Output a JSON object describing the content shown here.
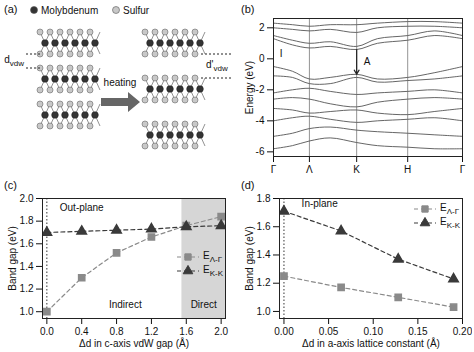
{
  "chart_data": [
    {
      "type": "diagram",
      "panel_label": "(a)",
      "atoms": [
        {
          "label": "Molybdenum",
          "color": "#333333"
        },
        {
          "label": "Sulfur",
          "color": "#c8c8c8"
        }
      ],
      "gap_labels": [
        "dvdw",
        "d'vdw"
      ],
      "arrow_label": "heating"
    },
    {
      "type": "band",
      "panel_label": "(b)",
      "ylabel": "Energy (eV)",
      "x": [
        0,
        0.1,
        0.19,
        0.3,
        0.44,
        0.55,
        0.71,
        0.85,
        1.0
      ],
      "xlim": [
        0,
        1
      ],
      "xticks": [
        {
          "value": 0,
          "label": "Γ"
        },
        {
          "value": 0.19,
          "label": "Λ"
        },
        {
          "value": 0.44,
          "label": "K"
        },
        {
          "value": 0.71,
          "label": "H"
        },
        {
          "value": 1.0,
          "label": "Γ"
        }
      ],
      "ylim": [
        -6.3,
        2.6
      ],
      "yticks": [
        -6,
        -4,
        -2,
        0,
        2
      ],
      "grid": "x",
      "series": [
        {
          "color": "#555555",
          "line_style": "solid",
          "values": [
            1.3,
            0.9,
            0.7,
            0.8,
            0.6,
            1.0,
            1.2,
            1.5,
            1.3
          ]
        },
        {
          "color": "#555555",
          "line_style": "solid",
          "values": [
            1.5,
            1.2,
            1.0,
            1.1,
            0.8,
            1.3,
            1.5,
            1.8,
            1.5
          ]
        },
        {
          "color": "#555555",
          "line_style": "solid",
          "values": [
            2.0,
            1.9,
            1.8,
            1.9,
            1.7,
            2.0,
            2.1,
            2.1,
            2.0
          ]
        },
        {
          "color": "#555555",
          "line_style": "solid",
          "values": [
            2.3,
            2.2,
            2.1,
            2.2,
            2.2,
            2.3,
            2.4,
            2.4,
            2.3
          ]
        },
        {
          "color": "#555555",
          "line_style": "solid",
          "values": [
            -0.5,
            -0.8,
            -1.3,
            -1.2,
            -1.0,
            -1.3,
            -1.2,
            -0.9,
            -0.5
          ]
        },
        {
          "color": "#555555",
          "line_style": "solid",
          "values": [
            -1.1,
            -1.2,
            -1.6,
            -1.6,
            -1.2,
            -1.5,
            -1.4,
            -1.3,
            -1.1
          ]
        },
        {
          "color": "#555555",
          "line_style": "solid",
          "values": [
            -2.2,
            -2.0,
            -1.9,
            -2.1,
            -2.3,
            -2.2,
            -2.1,
            -2.0,
            -2.2
          ]
        },
        {
          "color": "#555555",
          "line_style": "solid",
          "values": [
            -2.6,
            -2.5,
            -2.6,
            -2.9,
            -3.1,
            -2.8,
            -2.6,
            -2.5,
            -2.6
          ]
        },
        {
          "color": "#555555",
          "line_style": "solid",
          "values": [
            -3.2,
            -3.3,
            -3.5,
            -3.4,
            -3.3,
            -3.5,
            -3.6,
            -3.4,
            -3.2
          ]
        },
        {
          "color": "#555555",
          "line_style": "solid",
          "values": [
            -4.0,
            -3.8,
            -3.7,
            -3.9,
            -4.1,
            -4.0,
            -3.9,
            -3.8,
            -4.0
          ]
        },
        {
          "color": "#555555",
          "line_style": "solid",
          "values": [
            -5.0,
            -4.8,
            -4.5,
            -4.4,
            -4.6,
            -4.7,
            -4.8,
            -4.9,
            -5.0
          ]
        },
        {
          "color": "#555555",
          "line_style": "solid",
          "values": [
            -5.8,
            -5.6,
            -5.3,
            -5.1,
            -5.4,
            -5.6,
            -5.7,
            -5.8,
            -5.8
          ]
        }
      ],
      "annotations": [
        {
          "text": "I",
          "x": 0.04,
          "y": 0.3
        }
      ],
      "arrows": [
        {
          "text": "A",
          "x": 0.44,
          "from": 0.6,
          "to": -1.0
        }
      ]
    },
    {
      "type": "line",
      "panel_label": "(c)",
      "xlabel": "Δd in c-axis vdW gap (Å)",
      "ylabel": "Band gap (eV)",
      "x": [
        0,
        0.4,
        0.8,
        1.2,
        1.6,
        2.0
      ],
      "xlim": [
        -0.05,
        2.05
      ],
      "xticks": [
        {
          "value": 0,
          "label": "0.0"
        },
        {
          "value": 0.4,
          "label": "0.4"
        },
        {
          "value": 0.8,
          "label": "0.8"
        },
        {
          "value": 1.2,
          "label": "1.2"
        },
        {
          "value": 1.6,
          "label": "1.6"
        },
        {
          "value": 2,
          "label": "2.0"
        }
      ],
      "ylim": [
        0.94,
        2.0
      ],
      "yticks": [
        {
          "value": 1,
          "label": "1.0"
        },
        {
          "value": 1.2,
          "label": "1.2"
        },
        {
          "value": 1.4,
          "label": "1.4"
        },
        {
          "value": 1.6,
          "label": "1.6"
        },
        {
          "value": 1.8,
          "label": "1.8"
        },
        {
          "value": 2,
          "label": "2.0"
        }
      ],
      "legend": "right",
      "series": [
        {
          "name": "EΛ-Γ",
          "color": "#8a8a8a",
          "marker": "square",
          "line_style": "dashed",
          "values": [
            1.0,
            1.3,
            1.52,
            1.66,
            1.76,
            1.84
          ]
        },
        {
          "name": "EK-K",
          "color": "#3a3a3a",
          "marker": "triangle",
          "line_style": "dashed",
          "values": [
            1.7,
            1.71,
            1.72,
            1.73,
            1.75,
            1.76
          ]
        }
      ],
      "shaded_regions": [
        {
          "from": 1.55,
          "to": 2.05,
          "color": "#d6d6d6"
        }
      ],
      "reference_lines": [
        {
          "x": 0,
          "line_style": "dotted"
        }
      ],
      "annotations": [
        {
          "text": "Out-plane",
          "x": 0.4,
          "y": 1.92
        },
        {
          "text": "Indirect",
          "x": 0.9,
          "y": 1.06
        },
        {
          "text": "Direct",
          "x": 1.8,
          "y": 1.06
        }
      ]
    },
    {
      "type": "line",
      "panel_label": "(d)",
      "xlabel": "Δd in a-axis lattice constant (Å)",
      "ylabel": "Band gap (eV)",
      "x": [
        0,
        0.064,
        0.128,
        0.19
      ],
      "xlim": [
        -0.005,
        0.2
      ],
      "xticks": [
        {
          "value": 0,
          "label": "0.00"
        },
        {
          "value": 0.05,
          "label": "0.05"
        },
        {
          "value": 0.1,
          "label": "0.10"
        },
        {
          "value": 0.15,
          "label": "0.15"
        },
        {
          "value": 0.2,
          "label": "0.20"
        }
      ],
      "ylim": [
        0.95,
        1.8
      ],
      "yticks": [
        {
          "value": 1,
          "label": "1.0"
        },
        {
          "value": 1.2,
          "label": "1.2"
        },
        {
          "value": 1.4,
          "label": "1.4"
        },
        {
          "value": 1.6,
          "label": "1.6"
        },
        {
          "value": 1.8,
          "label": "1.8"
        }
      ],
      "legend": "top right",
      "series": [
        {
          "name": "EΛ-Γ",
          "color": "#8a8a8a",
          "marker": "square",
          "line_style": "dashed",
          "values": [
            1.25,
            1.17,
            1.1,
            1.03
          ]
        },
        {
          "name": "EK-K",
          "color": "#3a3a3a",
          "marker": "triangle",
          "line_style": "dashed",
          "values": [
            1.71,
            1.57,
            1.37,
            1.23
          ]
        }
      ],
      "reference_lines": [
        {
          "x": 0,
          "line_style": "dotted"
        }
      ],
      "annotations": [
        {
          "text": "In-plane",
          "x": 0.04,
          "y": 1.76
        }
      ]
    }
  ]
}
